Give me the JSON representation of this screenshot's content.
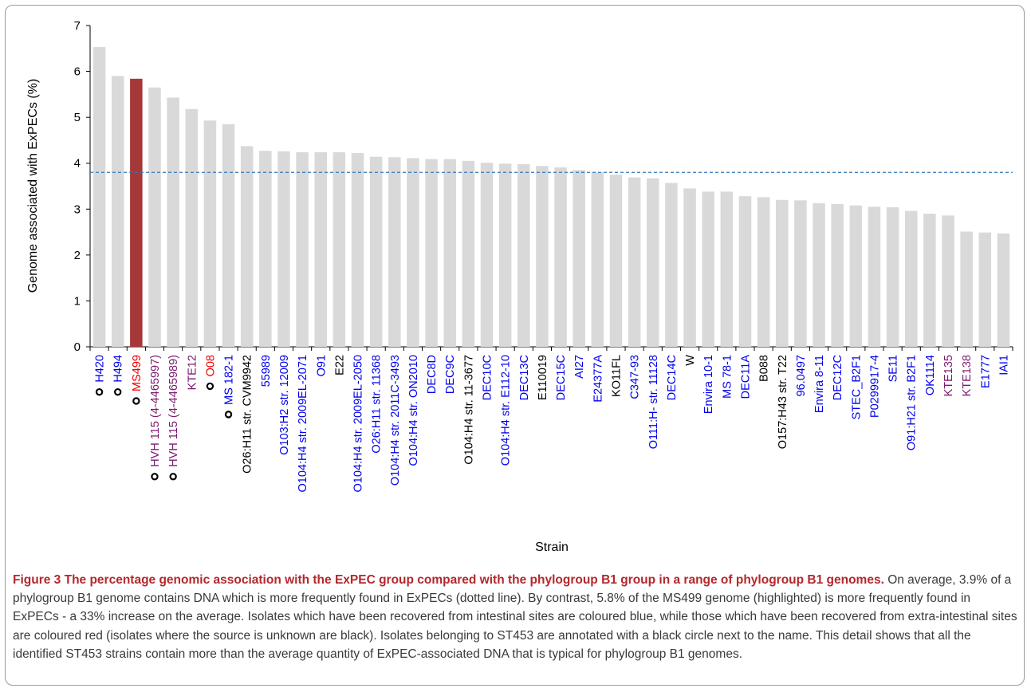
{
  "figure": {
    "caption_title": "Figure 3 The percentage genomic association with the ExPEC group compared with the phylogroup B1 group in a range of phylogroup B1 genomes.",
    "caption_text": "On average, 3.9% of a phylogroup B1 genome contains DNA which is more frequently found in ExPECs (dotted line). By contrast, 5.8% of the MS499 genome (highlighted) is more frequently found in ExPECs - a 33% increase on the average. Isolates which have been recovered from intestinal sites are coloured blue, while those which have been recovered from extra-intestinal sites are coloured red (isolates where the source is unknown are black). Isolates belonging to ST453 are annotated with a black circle next to the name. This detail shows that all the identified ST453 strains contain more than the average quantity of ExPEC-associated DNA that is typical for phylogroup B1 genomes."
  },
  "colors": {
    "bar": "#d9d9d9",
    "highlight_bar": "#a5393a",
    "average_line": "#2e75b6",
    "intestinal": "#0000ee",
    "extra_intestinal": "#ee0000",
    "unknown": "#000000",
    "purple": "#7a1a6e"
  },
  "chart_data": {
    "type": "bar",
    "xlabel": "Strain",
    "ylabel": "Genome associated with ExPECs (%)",
    "ylim": [
      0,
      7
    ],
    "yticks": [
      "0",
      "1",
      "2",
      "3",
      "4",
      "5",
      "6",
      "7"
    ],
    "average_line": 3.8,
    "grid": false,
    "categories": [
      "H420",
      "H494",
      "MS499",
      "HVH 115 (4-4465997)",
      "HVH 115 (4-4465989)",
      "KTE12",
      "O08",
      "MS 182-1",
      "O26:H11 str. CVM9942",
      "55989",
      "O103:H2 str. 12009",
      "O104:H4 str. 2009EL-2071",
      "O91",
      "E22",
      "O104:H4 str. 2009EL-2050",
      "O26:H11 str. 11368",
      "O104:H4 str. 2011C-3493",
      "O104:H4 str. ON2010",
      "DEC8D",
      "DEC9C",
      "O104:H4 str. 11-3677",
      "DEC10C",
      "O104:H4 str. E112-10",
      "DEC13C",
      "E110019",
      "DEC15C",
      "AI27",
      "E24377A",
      "KO11FL",
      "C347-93",
      "O111:H- str. 11128",
      "DEC14C",
      "W",
      "Envira 10-1",
      "MS 78-1",
      "DEC11A",
      "B088",
      "O157:H43 str. T22",
      "96.0497",
      "Envira 8-11",
      "DEC12C",
      "STEC_B2F1",
      "P0299917-4",
      "SE11",
      "O91:H21 str. B2F1",
      "OK1114",
      "KTE135",
      "KTE138",
      "E1777",
      "IAI1"
    ],
    "values": [
      6.53,
      5.9,
      5.84,
      5.65,
      5.43,
      5.18,
      4.93,
      4.85,
      4.37,
      4.27,
      4.26,
      4.24,
      4.24,
      4.24,
      4.22,
      4.14,
      4.13,
      4.11,
      4.09,
      4.09,
      4.05,
      4.01,
      3.99,
      3.98,
      3.94,
      3.91,
      3.85,
      3.8,
      3.75,
      3.69,
      3.67,
      3.57,
      3.45,
      3.38,
      3.38,
      3.28,
      3.26,
      3.2,
      3.19,
      3.13,
      3.11,
      3.08,
      3.05,
      3.04,
      2.96,
      2.9,
      2.86,
      2.51,
      2.49,
      2.47
    ],
    "label_colors": [
      "blue",
      "blue",
      "red",
      "purple",
      "purple",
      "purple",
      "red",
      "blue",
      "black",
      "blue",
      "blue",
      "blue",
      "blue",
      "black",
      "blue",
      "blue",
      "blue",
      "blue",
      "blue",
      "blue",
      "black",
      "blue",
      "blue",
      "blue",
      "black",
      "blue",
      "blue",
      "blue",
      "black",
      "blue",
      "blue",
      "blue",
      "black",
      "blue",
      "blue",
      "blue",
      "black",
      "black",
      "blue",
      "blue",
      "blue",
      "blue",
      "blue",
      "blue",
      "blue",
      "blue",
      "purple",
      "purple",
      "blue",
      "blue"
    ],
    "st453_marked": [
      true,
      true,
      true,
      true,
      true,
      false,
      true,
      true,
      false,
      false,
      false,
      false,
      false,
      false,
      false,
      false,
      false,
      false,
      false,
      false,
      false,
      false,
      false,
      false,
      false,
      false,
      false,
      false,
      false,
      false,
      false,
      false,
      false,
      false,
      false,
      false,
      false,
      false,
      false,
      false,
      false,
      false,
      false,
      false,
      false,
      false,
      false,
      false,
      false,
      false
    ],
    "highlight": "MS499"
  }
}
